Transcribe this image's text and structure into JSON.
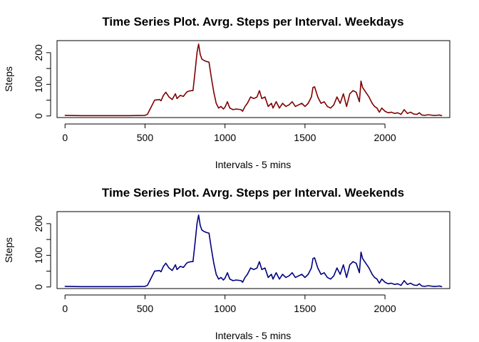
{
  "chart_data": [
    {
      "type": "line",
      "title": "Time Series Plot. Avrg. Steps per Interval. Weekdays",
      "xlabel": "Intervals - 5 mins",
      "ylabel": "Steps",
      "xlim": [
        -50,
        2405
      ],
      "ylim": [
        -5,
        238
      ],
      "xticks": [
        0,
        500,
        1000,
        1500,
        2000
      ],
      "yticks": [
        0,
        100,
        200
      ],
      "color": "#7f0000",
      "grid": false,
      "series": [
        {
          "x": [
            0,
            100,
            200,
            300,
            400,
            500,
            515,
            530,
            560,
            590,
            600,
            615,
            630,
            650,
            670,
            690,
            700,
            720,
            740,
            760,
            770,
            790,
            800,
            815,
            825,
            835,
            845,
            855,
            870,
            885,
            900,
            915,
            930,
            945,
            960,
            975,
            990,
            1000,
            1015,
            1030,
            1050,
            1070,
            1100,
            1110,
            1125,
            1140,
            1160,
            1180,
            1200,
            1215,
            1230,
            1250,
            1270,
            1290,
            1300,
            1320,
            1340,
            1360,
            1380,
            1400,
            1420,
            1440,
            1460,
            1480,
            1500,
            1520,
            1540,
            1550,
            1560,
            1580,
            1600,
            1620,
            1640,
            1660,
            1680,
            1700,
            1720,
            1740,
            1750,
            1760,
            1780,
            1800,
            1820,
            1840,
            1850,
            1860,
            1880,
            1900,
            1910,
            1920,
            1935,
            1950,
            1965,
            1980,
            2000,
            2020,
            2040,
            2060,
            2080,
            2100,
            2120,
            2140,
            2160,
            2180,
            2200,
            2215,
            2230,
            2250,
            2270,
            2300,
            2320,
            2340,
            2355
          ],
          "y": [
            2,
            1,
            1,
            1,
            1,
            2,
            5,
            20,
            50,
            52,
            48,
            65,
            75,
            60,
            52,
            70,
            55,
            65,
            62,
            75,
            78,
            80,
            80,
            150,
            200,
            227,
            195,
            180,
            175,
            172,
            170,
            120,
            75,
            40,
            25,
            30,
            22,
            28,
            45,
            25,
            20,
            22,
            20,
            15,
            30,
            40,
            60,
            55,
            60,
            80,
            55,
            60,
            30,
            40,
            25,
            45,
            25,
            40,
            30,
            35,
            45,
            30,
            35,
            40,
            30,
            40,
            60,
            90,
            92,
            60,
            40,
            45,
            30,
            25,
            35,
            60,
            40,
            70,
            50,
            30,
            70,
            80,
            75,
            45,
            110,
            90,
            75,
            60,
            50,
            40,
            30,
            25,
            12,
            25,
            15,
            10,
            12,
            8,
            10,
            5,
            20,
            8,
            12,
            6,
            5,
            10,
            3,
            2,
            4,
            2,
            2,
            3,
            1
          ]
        }
      ]
    },
    {
      "type": "line",
      "title": "Time Series Plot. Avrg. Steps per Interval. Weekends",
      "xlabel": "Intervals - 5 mins",
      "ylabel": "Steps",
      "xlim": [
        -50,
        2405
      ],
      "ylim": [
        -5,
        238
      ],
      "xticks": [
        0,
        500,
        1000,
        1500,
        2000
      ],
      "yticks": [
        0,
        100,
        200
      ],
      "color": "#00007f",
      "grid": false,
      "series": [
        {
          "x": [
            0,
            100,
            200,
            300,
            400,
            500,
            515,
            530,
            560,
            590,
            600,
            615,
            630,
            650,
            670,
            690,
            700,
            720,
            740,
            760,
            770,
            790,
            800,
            815,
            825,
            835,
            845,
            855,
            870,
            885,
            900,
            915,
            930,
            945,
            960,
            975,
            990,
            1000,
            1015,
            1030,
            1050,
            1070,
            1100,
            1110,
            1125,
            1140,
            1160,
            1180,
            1200,
            1215,
            1230,
            1250,
            1270,
            1290,
            1300,
            1320,
            1340,
            1360,
            1380,
            1400,
            1420,
            1440,
            1460,
            1480,
            1500,
            1520,
            1540,
            1550,
            1560,
            1580,
            1600,
            1620,
            1640,
            1660,
            1680,
            1700,
            1720,
            1740,
            1750,
            1760,
            1780,
            1800,
            1820,
            1840,
            1850,
            1860,
            1880,
            1900,
            1910,
            1920,
            1935,
            1950,
            1965,
            1980,
            2000,
            2020,
            2040,
            2060,
            2080,
            2100,
            2120,
            2140,
            2160,
            2180,
            2200,
            2215,
            2230,
            2250,
            2270,
            2300,
            2320,
            2340,
            2355
          ],
          "y": [
            2,
            1,
            1,
            1,
            1,
            2,
            5,
            20,
            50,
            52,
            48,
            65,
            75,
            60,
            52,
            70,
            55,
            65,
            62,
            75,
            78,
            80,
            80,
            150,
            200,
            227,
            195,
            180,
            175,
            172,
            170,
            120,
            75,
            40,
            25,
            30,
            22,
            28,
            45,
            25,
            20,
            22,
            20,
            15,
            30,
            40,
            60,
            55,
            60,
            80,
            55,
            60,
            30,
            40,
            25,
            45,
            25,
            40,
            30,
            35,
            45,
            30,
            35,
            40,
            30,
            40,
            60,
            90,
            92,
            60,
            40,
            45,
            30,
            25,
            35,
            60,
            40,
            70,
            50,
            30,
            70,
            80,
            75,
            45,
            110,
            90,
            75,
            60,
            50,
            40,
            30,
            25,
            12,
            25,
            15,
            10,
            12,
            8,
            10,
            5,
            20,
            8,
            12,
            6,
            5,
            10,
            3,
            2,
            4,
            2,
            2,
            3,
            1
          ]
        }
      ]
    }
  ]
}
